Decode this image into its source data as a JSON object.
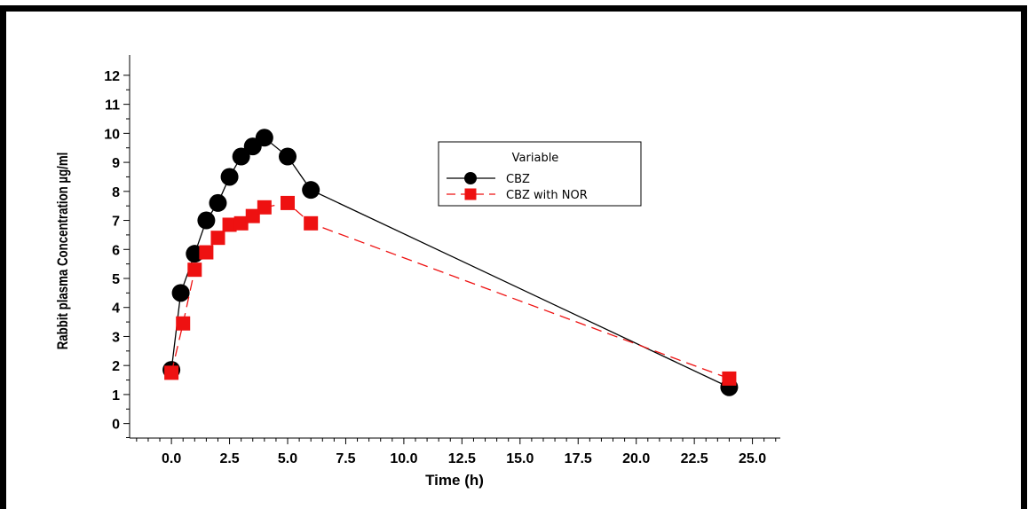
{
  "chart_data": {
    "type": "line",
    "title": "",
    "xlabel": "Time (h)",
    "ylabel": "Rabbit plasma Concentration µg/ml",
    "xlim": [
      -1.8,
      26.2
    ],
    "ylim": [
      -0.5,
      12.7
    ],
    "x_ticks": [
      "0.0",
      "2.5",
      "5.0",
      "7.5",
      "10.0",
      "12.5",
      "15.0",
      "17.5",
      "20.0",
      "22.5",
      "25.0"
    ],
    "y_ticks": [
      "0",
      "1",
      "2",
      "3",
      "4",
      "5",
      "6",
      "7",
      "8",
      "9",
      "10",
      "11",
      "12"
    ],
    "legend": {
      "title": "Variable",
      "position": "upper-center"
    },
    "grid": false,
    "series": [
      {
        "name": "CBZ",
        "color": "#000000",
        "marker": "circle",
        "line_style": "solid",
        "x": [
          0,
          0.4,
          1,
          1.5,
          2,
          2.5,
          3,
          3.5,
          4,
          5,
          6,
          24
        ],
        "y": [
          1.85,
          4.5,
          5.85,
          7.0,
          7.6,
          8.5,
          9.2,
          9.55,
          9.85,
          9.2,
          8.05,
          1.25
        ]
      },
      {
        "name": "CBZ with NOR",
        "color": "#ee1111",
        "marker": "square",
        "line_style": "dashed",
        "x": [
          0,
          0.5,
          1,
          1.5,
          2,
          2.5,
          3,
          3.5,
          4,
          5,
          6,
          24
        ],
        "y": [
          1.75,
          3.45,
          5.3,
          5.9,
          6.4,
          6.85,
          6.9,
          7.15,
          7.45,
          7.6,
          6.9,
          1.55
        ]
      }
    ]
  }
}
